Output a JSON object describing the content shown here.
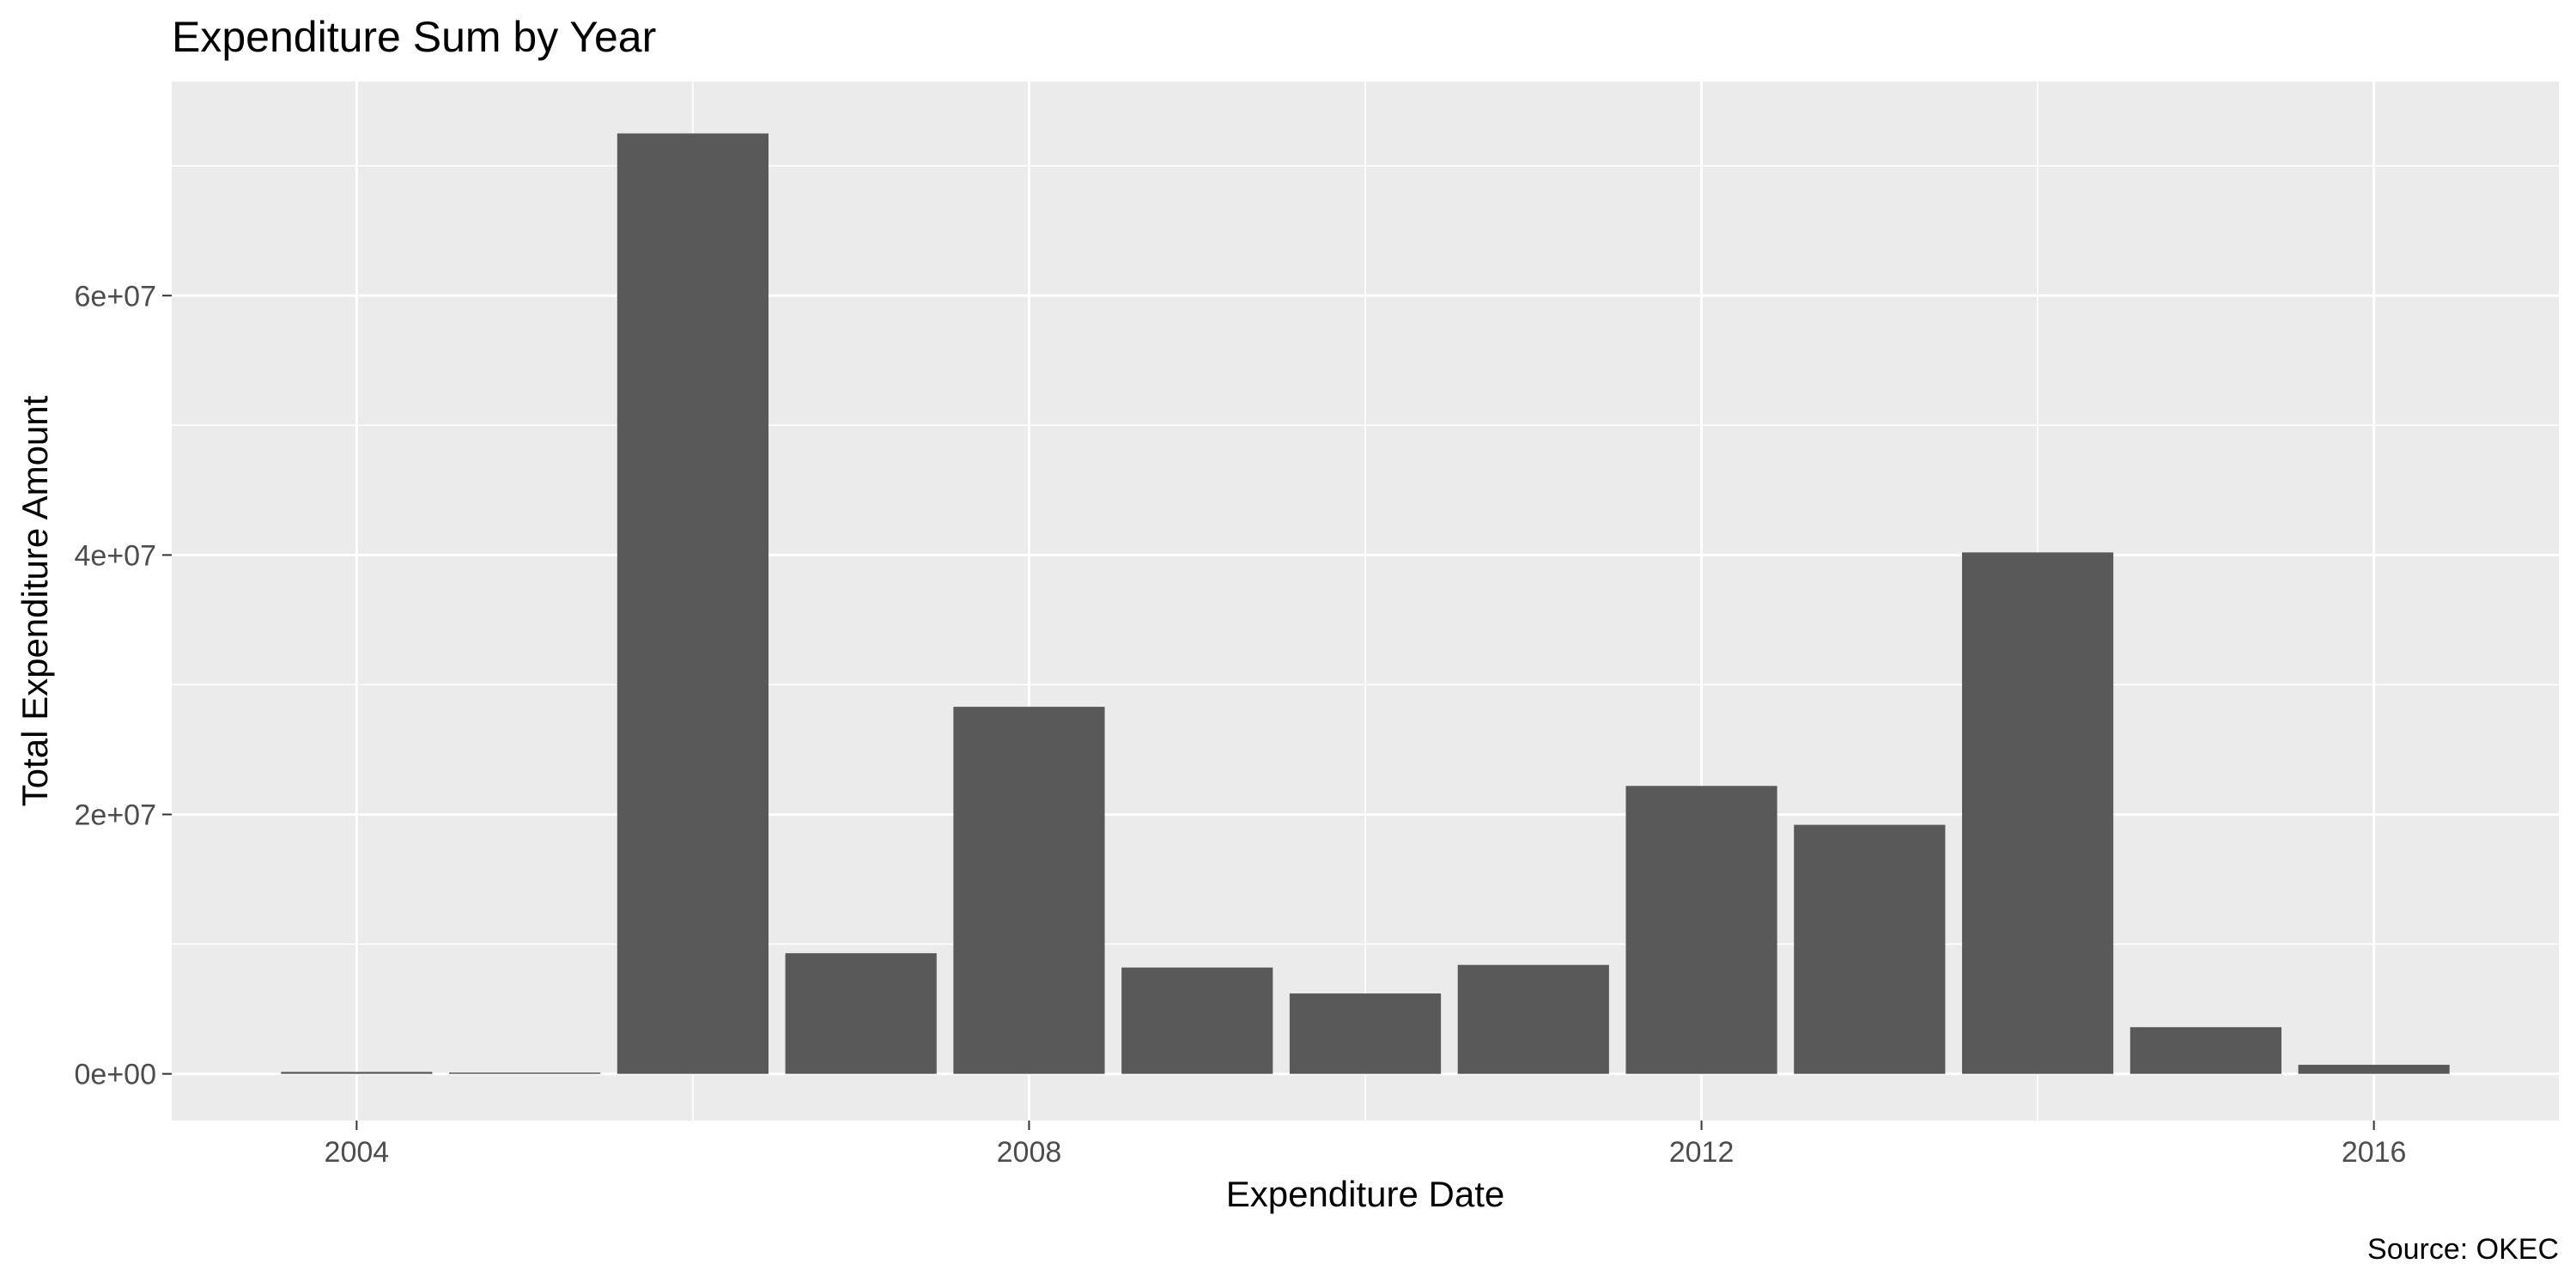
{
  "chart_data": {
    "type": "bar",
    "title": "Expenditure Sum by Year",
    "xlabel": "Expenditure Date",
    "ylabel": "Total Expenditure Amount",
    "caption": "Source: OKEC",
    "x": [
      2004,
      2005,
      2006,
      2007,
      2008,
      2009,
      2010,
      2011,
      2012,
      2013,
      2014,
      2015,
      2016
    ],
    "values": [
      150000,
      100000,
      72500000,
      9300000,
      28300000,
      8200000,
      6200000,
      8400000,
      22200000,
      19200000,
      40200000,
      3600000,
      700000
    ],
    "xlim": [
      2002.9,
      2017.1
    ],
    "ylim": [
      -3600000,
      76500000
    ],
    "x_ticks": [
      2004,
      2008,
      2012,
      2016
    ],
    "x_tick_labels": [
      "2004",
      "2008",
      "2012",
      "2016"
    ],
    "y_ticks": [
      0,
      20000000,
      40000000,
      60000000
    ],
    "y_tick_labels": [
      "0e+00",
      "2e+07",
      "4e+07",
      "6e+07"
    ],
    "grid": true,
    "legend": "none",
    "colors": {
      "panel_background": "#ebebeb",
      "bar_fill": "#595959",
      "grid_line": "#ffffff",
      "tick_text": "#4d4d4d",
      "tick_mark": "#333333",
      "text": "#000000"
    }
  }
}
